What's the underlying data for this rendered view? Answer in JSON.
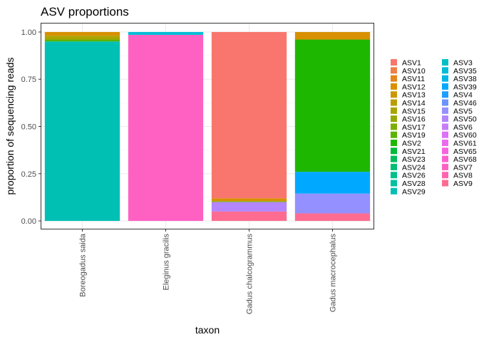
{
  "chart_data": {
    "type": "bar",
    "stacked": true,
    "title": "ASV proportions",
    "xlabel": "taxon",
    "ylabel": "proportion of sequencing reads",
    "ylim": [
      0,
      1
    ],
    "yticks": [
      "0.00",
      "0.25",
      "0.50",
      "0.75",
      "1.00"
    ],
    "ytick_values": [
      0,
      0.25,
      0.5,
      0.75,
      1.0
    ],
    "categories": [
      "Boreogadus saida",
      "Eleginus gracilis",
      "Gadus chalcogrammus",
      "Gadus macrocephalus"
    ],
    "grid": true,
    "legend_position": "right",
    "legend": [
      {
        "name": "ASV1",
        "color": "#F8766D"
      },
      {
        "name": "ASV10",
        "color": "#EF7F49"
      },
      {
        "name": "ASV11",
        "color": "#E5861A"
      },
      {
        "name": "ASV12",
        "color": "#D89000"
      },
      {
        "name": "ASV13",
        "color": "#CB9700"
      },
      {
        "name": "ASV14",
        "color": "#BB9D00"
      },
      {
        "name": "ASV15",
        "color": "#A9A400"
      },
      {
        "name": "ASV16",
        "color": "#95A900"
      },
      {
        "name": "ASV17",
        "color": "#7CAE00"
      },
      {
        "name": "ASV19",
        "color": "#5BB300"
      },
      {
        "name": "ASV2",
        "color": "#1EB700"
      },
      {
        "name": "ASV21",
        "color": "#00BA38"
      },
      {
        "name": "ASV23",
        "color": "#00BC59"
      },
      {
        "name": "ASV24",
        "color": "#00BE74"
      },
      {
        "name": "ASV26",
        "color": "#00C08B"
      },
      {
        "name": "ASV28",
        "color": "#00C0A0"
      },
      {
        "name": "ASV29",
        "color": "#00C0B4"
      },
      {
        "name": "ASV3",
        "color": "#00BFC4"
      },
      {
        "name": "ASV35",
        "color": "#00BCD6"
      },
      {
        "name": "ASV38",
        "color": "#00B6E8"
      },
      {
        "name": "ASV39",
        "color": "#00A9FF"
      },
      {
        "name": "ASV4",
        "color": "#1F9EFF"
      },
      {
        "name": "ASV46",
        "color": "#6B94FF"
      },
      {
        "name": "ASV5",
        "color": "#9590FF"
      },
      {
        "name": "ASV50",
        "color": "#B385FF"
      },
      {
        "name": "ASV6",
        "color": "#C77CFF"
      },
      {
        "name": "ASV60",
        "color": "#DE71F9"
      },
      {
        "name": "ASV61",
        "color": "#EC69EF"
      },
      {
        "name": "ASV65",
        "color": "#F763E0"
      },
      {
        "name": "ASV68",
        "color": "#FD61D1"
      },
      {
        "name": "ASV7",
        "color": "#FF61C3"
      },
      {
        "name": "ASV8",
        "color": "#FF64B0"
      },
      {
        "name": "ASV9",
        "color": "#FF6C91"
      }
    ],
    "bars": [
      {
        "category": "Boreogadus saida",
        "segments": [
          {
            "series": "ASV29",
            "value": 0.95
          },
          {
            "series": "ASV19",
            "value": 0.01
          },
          {
            "series": "ASV15",
            "value": 0.02
          },
          {
            "series": "ASV12",
            "value": 0.02
          }
        ]
      },
      {
        "category": "Eleginus gracilis",
        "segments": [
          {
            "series": "ASV7",
            "value": 0.985
          },
          {
            "series": "ASV35",
            "value": 0.015
          }
        ]
      },
      {
        "category": "Gadus chalcogrammus",
        "segments": [
          {
            "series": "ASV9",
            "value": 0.05
          },
          {
            "series": "ASV50",
            "value": 0.05
          },
          {
            "series": "ASV17",
            "value": 0.005
          },
          {
            "series": "ASV12",
            "value": 0.015
          },
          {
            "series": "ASV1",
            "value": 0.88
          }
        ]
      },
      {
        "category": "Gadus macrocephalus",
        "segments": [
          {
            "series": "ASV9",
            "value": 0.04
          },
          {
            "series": "ASV5",
            "value": 0.105
          },
          {
            "series": "ASV39",
            "value": 0.115
          },
          {
            "series": "ASV2",
            "value": 0.7
          },
          {
            "series": "ASV12",
            "value": 0.04
          }
        ]
      }
    ]
  }
}
